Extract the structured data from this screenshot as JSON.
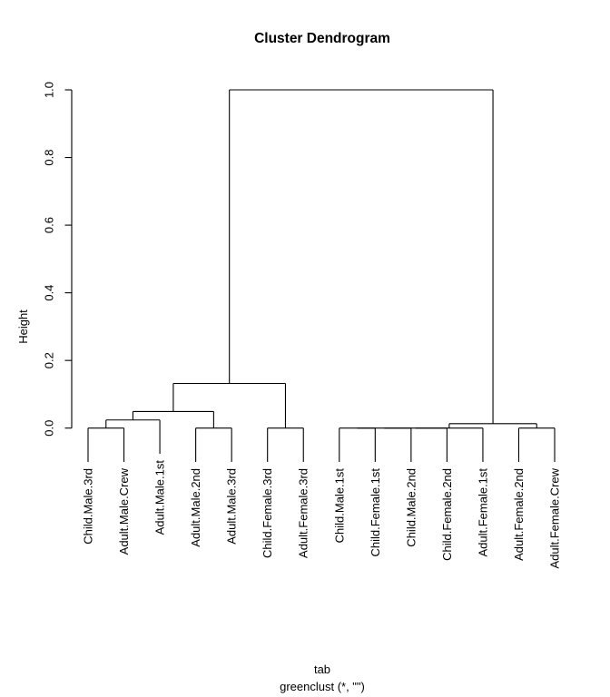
{
  "chart_data": {
    "type": "dendrogram",
    "title": "Cluster Dendrogram",
    "ylabel": "Height",
    "xlabel_lines": [
      "tab",
      "greenclust (*, \"\")"
    ],
    "y_ticks": [
      "0.0",
      "0.2",
      "0.4",
      "0.6",
      "0.8",
      "1.0"
    ],
    "ylim": [
      0,
      1
    ],
    "grid": false,
    "line_color": "#000000",
    "hang": 0.1,
    "leaves": [
      "Child.Male.3rd",
      "Adult.Male.Crew",
      "Adult.Male.1st",
      "Adult.Male.2nd",
      "Adult.Male.3rd",
      "Child.Female.3rd",
      "Adult.Female.3rd",
      "Child.Male.1st",
      "Child.Female.1st",
      "Child.Male.2nd",
      "Child.Female.2nd",
      "Adult.Female.1st",
      "Adult.Female.2nd",
      "Adult.Female.Crew"
    ],
    "merges": [
      {
        "id": "M0",
        "a": "L0",
        "b": "L1",
        "height": 0.0
      },
      {
        "id": "M1",
        "a": "M0",
        "b": "L2",
        "height": 0.024
      },
      {
        "id": "M2",
        "a": "L3",
        "b": "L4",
        "height": 0.0
      },
      {
        "id": "M3",
        "a": "M1",
        "b": "M2",
        "height": 0.049
      },
      {
        "id": "M4",
        "a": "L5",
        "b": "L6",
        "height": 0.0
      },
      {
        "id": "M5",
        "a": "M3",
        "b": "M4",
        "height": 0.132
      },
      {
        "id": "M6",
        "a": "L7",
        "b": "L8",
        "height": 0.0
      },
      {
        "id": "M7",
        "a": "M6",
        "b": "L9",
        "height": 0.0
      },
      {
        "id": "M8",
        "a": "M7",
        "b": "L10",
        "height": 0.0
      },
      {
        "id": "M9",
        "a": "M8",
        "b": "L11",
        "height": 0.0
      },
      {
        "id": "M10",
        "a": "L12",
        "b": "L13",
        "height": 0.0
      },
      {
        "id": "M11",
        "a": "M9",
        "b": "M10",
        "height": 0.013
      },
      {
        "id": "M12",
        "a": "M5",
        "b": "M11",
        "height": 1.0
      }
    ]
  }
}
